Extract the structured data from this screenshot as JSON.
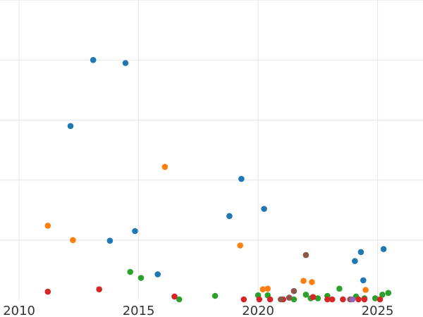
{
  "chart_data": {
    "type": "scatter",
    "title": "",
    "xlabel": "",
    "ylabel": "",
    "xlim": [
      2009.2,
      2026.9
    ],
    "ylim": [
      0,
      5
    ],
    "x_ticks": [
      2010,
      2015,
      2020,
      2025
    ],
    "x_tick_labels": [
      "2010",
      "2015",
      "2020",
      "2025"
    ],
    "y_gridlines": [
      1,
      2,
      3,
      4,
      5
    ],
    "grid": true,
    "legend": "none",
    "series": [
      {
        "color": "#1f77b4",
        "points": [
          {
            "x": 2013.1,
            "y": 4.0
          },
          {
            "x": 2014.45,
            "y": 3.95
          },
          {
            "x": 2012.15,
            "y": 2.9
          },
          {
            "x": 2019.3,
            "y": 2.02
          },
          {
            "x": 2020.25,
            "y": 1.52
          },
          {
            "x": 2018.8,
            "y": 1.4
          },
          {
            "x": 2014.85,
            "y": 1.15
          },
          {
            "x": 2013.8,
            "y": 0.99
          },
          {
            "x": 2015.8,
            "y": 0.43
          },
          {
            "x": 2024.3,
            "y": 0.8
          },
          {
            "x": 2025.25,
            "y": 0.85
          },
          {
            "x": 2024.05,
            "y": 0.65
          },
          {
            "x": 2024.4,
            "y": 0.33
          }
        ]
      },
      {
        "color": "#ff7f0e",
        "points": [
          {
            "x": 2016.1,
            "y": 2.22
          },
          {
            "x": 2011.2,
            "y": 1.24
          },
          {
            "x": 2012.25,
            "y": 1.0
          },
          {
            "x": 2019.25,
            "y": 0.91
          },
          {
            "x": 2020.2,
            "y": 0.18
          },
          {
            "x": 2020.4,
            "y": 0.19
          },
          {
            "x": 2021.9,
            "y": 0.32
          },
          {
            "x": 2022.25,
            "y": 0.3
          },
          {
            "x": 2024.5,
            "y": 0.17
          }
        ]
      },
      {
        "color": "#2ca02c",
        "points": [
          {
            "x": 2014.65,
            "y": 0.47
          },
          {
            "x": 2015.1,
            "y": 0.37
          },
          {
            "x": 2016.7,
            "y": 0.0
          },
          {
            "x": 2018.2,
            "y": 0.07
          },
          {
            "x": 2020.0,
            "y": 0.08
          },
          {
            "x": 2020.4,
            "y": 0.08
          },
          {
            "x": 2021.5,
            "y": 0.01
          },
          {
            "x": 2022.0,
            "y": 0.09
          },
          {
            "x": 2022.2,
            "y": 0.03
          },
          {
            "x": 2022.5,
            "y": 0.03
          },
          {
            "x": 2022.9,
            "y": 0.07
          },
          {
            "x": 2023.4,
            "y": 0.19
          },
          {
            "x": 2024.1,
            "y": 0.06
          },
          {
            "x": 2024.45,
            "y": 0.03
          },
          {
            "x": 2024.9,
            "y": 0.03
          },
          {
            "x": 2025.2,
            "y": 0.09
          },
          {
            "x": 2025.45,
            "y": 0.12
          }
        ]
      },
      {
        "color": "#d62728",
        "points": [
          {
            "x": 2011.2,
            "y": 0.14
          },
          {
            "x": 2013.35,
            "y": 0.18
          },
          {
            "x": 2016.5,
            "y": 0.06
          },
          {
            "x": 2019.4,
            "y": 0.0
          },
          {
            "x": 2020.05,
            "y": 0.0
          },
          {
            "x": 2020.5,
            "y": -0.02
          },
          {
            "x": 2021.05,
            "y": -0.02
          },
          {
            "x": 2022.3,
            "y": 0.05
          },
          {
            "x": 2022.9,
            "y": -0.04
          },
          {
            "x": 2023.1,
            "y": -0.04
          },
          {
            "x": 2023.55,
            "y": -0.04
          },
          {
            "x": 2024.2,
            "y": -0.04
          },
          {
            "x": 2024.45,
            "y": 0.0
          },
          {
            "x": 2025.1,
            "y": -0.03
          }
        ]
      },
      {
        "color": "#8c564b",
        "points": [
          {
            "x": 2022.0,
            "y": 0.75
          },
          {
            "x": 2021.5,
            "y": 0.15
          },
          {
            "x": 2021.3,
            "y": 0.04
          },
          {
            "x": 2020.95,
            "y": 0.0
          },
          {
            "x": 2023.85,
            "y": 0.01
          }
        ]
      },
      {
        "color": "#9467bd",
        "points": [
          {
            "x": 2023.95,
            "y": -0.04
          }
        ]
      }
    ]
  }
}
